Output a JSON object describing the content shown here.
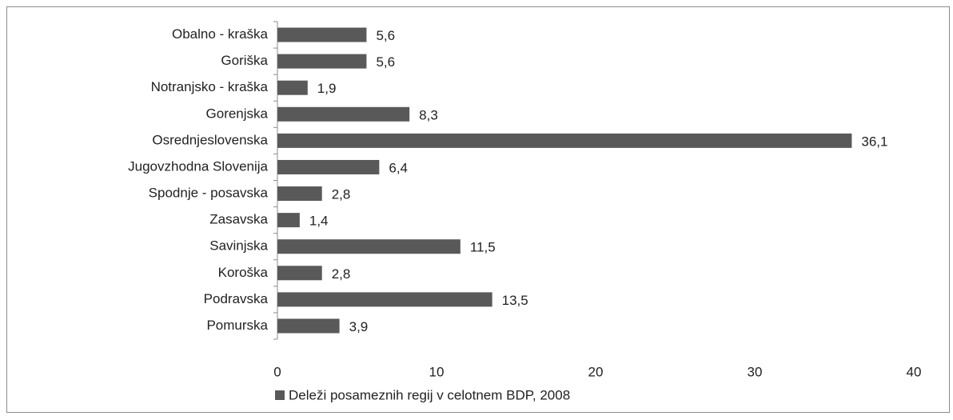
{
  "chart_data": {
    "type": "bar",
    "orientation": "horizontal",
    "categories": [
      "Obalno - kraška",
      "Goriška",
      "Notranjsko - kraška",
      "Gorenjska",
      "Osrednjeslovenska",
      "Jugovzhodna Slovenija",
      "Spodnje - posavska",
      "Zasavska",
      "Savinjska",
      "Koroška",
      "Podravska",
      "Pomurska"
    ],
    "series": [
      {
        "name": "Deleži posameznih regij v celotnem BDP, 2008",
        "color": "#595959",
        "values": [
          5.6,
          5.6,
          1.9,
          8.3,
          36.1,
          6.4,
          2.8,
          1.4,
          11.5,
          2.8,
          13.5,
          3.9
        ],
        "value_labels": [
          "5,6",
          "5,6",
          "1,9",
          "8,3",
          "36,1",
          "6,4",
          "2,8",
          "1,4",
          "11,5",
          "2,8",
          "13,5",
          "3,9"
        ]
      }
    ],
    "xlim": [
      0,
      40
    ],
    "xticks": [
      0,
      10,
      20,
      30,
      40
    ],
    "grid": false,
    "legend": "bottom"
  }
}
